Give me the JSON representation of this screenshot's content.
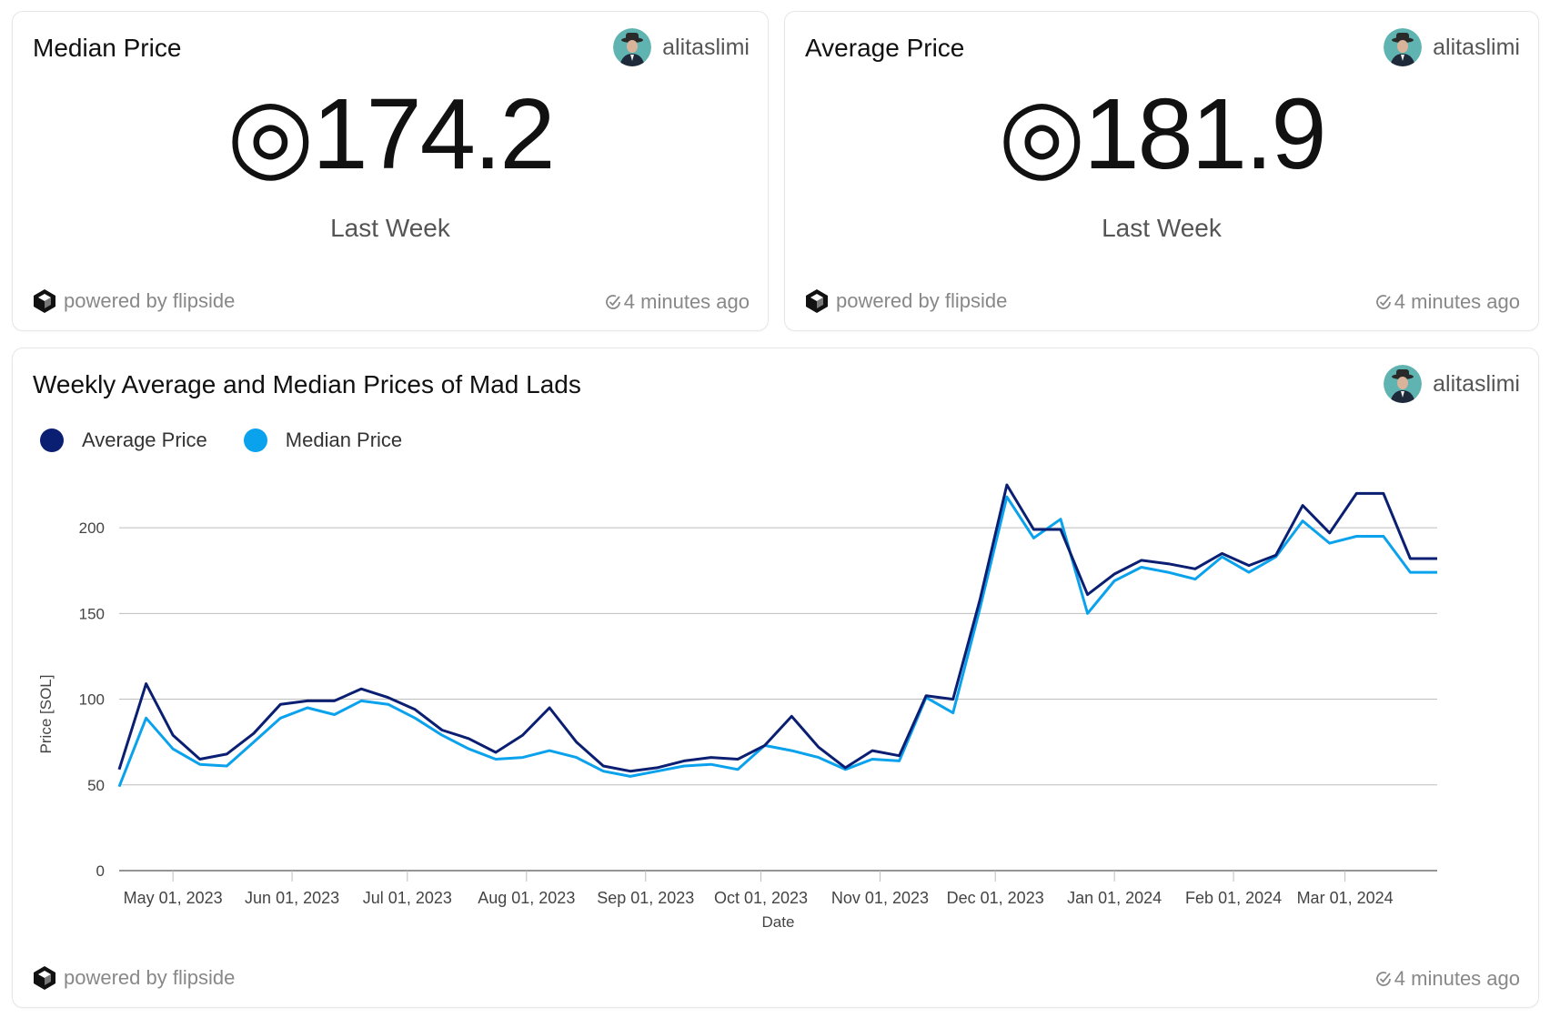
{
  "colors": {
    "average": "#0b1f72",
    "median": "#0aa2ec",
    "grid": "#bdbdbd",
    "axis": "#555555"
  },
  "cards": [
    {
      "title": "Median Price",
      "author": "alitaslimi",
      "value": "174.2",
      "currency_symbol": "◎",
      "sub_label": "Last Week",
      "powered": "powered by flipside",
      "updated": "4 minutes ago"
    },
    {
      "title": "Average Price",
      "author": "alitaslimi",
      "value": "181.9",
      "currency_symbol": "◎",
      "sub_label": "Last Week",
      "powered": "powered by flipside",
      "updated": "4 minutes ago"
    }
  ],
  "chart_card": {
    "title": "Weekly Average and Median Prices of Mad Lads",
    "author": "alitaslimi",
    "powered": "powered by flipside",
    "updated": "4 minutes ago"
  },
  "chart_data": {
    "type": "line",
    "title": "Weekly Average and Median Prices of Mad Lads",
    "xlabel": "Date",
    "ylabel": "Price [SOL]",
    "ylim": [
      0,
      225
    ],
    "yticks": [
      0,
      50,
      100,
      150,
      200
    ],
    "xlim": [
      "2023-04-17",
      "2024-03-25"
    ],
    "xticks": [
      {
        "date": "2023-05-01",
        "label": "May 01, 2023"
      },
      {
        "date": "2023-06-01",
        "label": "Jun 01, 2023"
      },
      {
        "date": "2023-07-01",
        "label": "Jul 01, 2023"
      },
      {
        "date": "2023-08-01",
        "label": "Aug 01, 2023"
      },
      {
        "date": "2023-09-01",
        "label": "Sep 01, 2023"
      },
      {
        "date": "2023-10-01",
        "label": "Oct 01, 2023"
      },
      {
        "date": "2023-11-01",
        "label": "Nov 01, 2023"
      },
      {
        "date": "2023-12-01",
        "label": "Dec 01, 2023"
      },
      {
        "date": "2024-01-01",
        "label": "Jan 01, 2024"
      },
      {
        "date": "2024-02-01",
        "label": "Feb 01, 2024"
      },
      {
        "date": "2024-03-01",
        "label": "Mar 01, 2024"
      }
    ],
    "grid": true,
    "legend_position": "top-left",
    "x": [
      "2023-04-17",
      "2023-04-24",
      "2023-05-01",
      "2023-05-08",
      "2023-05-15",
      "2023-05-22",
      "2023-05-29",
      "2023-06-05",
      "2023-06-12",
      "2023-06-19",
      "2023-06-26",
      "2023-07-03",
      "2023-07-10",
      "2023-07-17",
      "2023-07-24",
      "2023-07-31",
      "2023-08-07",
      "2023-08-14",
      "2023-08-21",
      "2023-08-28",
      "2023-09-04",
      "2023-09-11",
      "2023-09-18",
      "2023-09-25",
      "2023-10-02",
      "2023-10-09",
      "2023-10-16",
      "2023-10-23",
      "2023-10-30",
      "2023-11-06",
      "2023-11-13",
      "2023-11-20",
      "2023-11-27",
      "2023-12-04",
      "2023-12-11",
      "2023-12-18",
      "2023-12-25",
      "2024-01-01",
      "2024-01-08",
      "2024-01-15",
      "2024-01-22",
      "2024-01-29",
      "2024-02-05",
      "2024-02-12",
      "2024-02-19",
      "2024-02-26",
      "2024-03-04",
      "2024-03-11",
      "2024-03-18",
      "2024-03-25"
    ],
    "series": [
      {
        "name": "Average Price",
        "values": [
          59,
          109,
          79,
          65,
          68,
          80,
          97,
          99,
          99,
          106,
          101,
          94,
          82,
          77,
          69,
          79,
          95,
          75,
          61,
          58,
          60,
          64,
          66,
          65,
          73,
          90,
          72,
          60,
          70,
          67,
          102,
          100,
          158,
          225,
          199,
          199,
          161,
          173,
          181,
          179,
          176,
          185,
          178,
          184,
          213,
          197,
          220,
          220,
          182,
          182
        ]
      },
      {
        "name": "Median Price",
        "values": [
          49,
          89,
          71,
          62,
          61,
          75,
          89,
          95,
          91,
          99,
          97,
          89,
          79,
          71,
          65,
          66,
          70,
          66,
          58,
          55,
          58,
          61,
          62,
          59,
          73,
          70,
          66,
          59,
          65,
          64,
          101,
          92,
          153,
          218,
          194,
          205,
          150,
          169,
          177,
          174,
          170,
          183,
          174,
          183,
          204,
          191,
          195,
          195,
          174,
          174
        ]
      }
    ]
  }
}
